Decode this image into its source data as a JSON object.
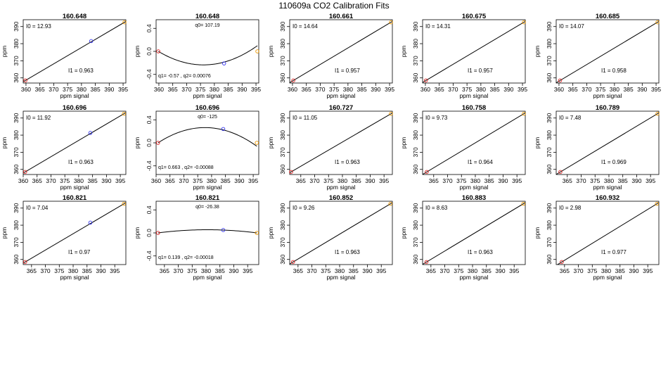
{
  "figure": {
    "title": "110609a   CO2 Calibration Fits",
    "colors": {
      "low_point": "#dd2222",
      "mid_point": "#3333ee",
      "high_point": "#ee9900",
      "line": "#000000"
    }
  },
  "chart_data": [
    {
      "type": "scatter",
      "kind": "linear",
      "title": "160.648",
      "xlabel": "ppm signal",
      "ylabel": "ppm",
      "xlim": [
        359,
        396
      ],
      "ylim": [
        357,
        394
      ],
      "xticks": [
        360,
        365,
        370,
        375,
        380,
        385,
        390,
        395
      ],
      "yticks": [
        360,
        370,
        380,
        390
      ],
      "points": [
        [
          359.8,
          358.5
        ],
        [
          383.5,
          381.5
        ],
        [
          395.5,
          392.5
        ]
      ],
      "anno": {
        "top": "I0 =  12.93",
        "bottom": "I1 =  0.963"
      }
    },
    {
      "type": "scatter",
      "kind": "quadratic",
      "title": "160.648",
      "xlabel": "",
      "ylabel": "ppm",
      "xlim": [
        359,
        396
      ],
      "ylim": [
        -0.55,
        0.55
      ],
      "xticks": [
        360,
        365,
        370,
        375,
        380,
        385,
        390,
        395
      ],
      "yticks": [
        -0.4,
        0,
        0.4
      ],
      "ytickLabels": [
        "-0.4",
        "0.0",
        "0.4"
      ],
      "points": [
        [
          359.8,
          0.0
        ],
        [
          383.5,
          -0.21
        ],
        [
          395.5,
          0.0
        ]
      ],
      "vertex": [
        376.1,
        -0.235
      ],
      "anno": {
        "top": "q0= 107.19",
        "bottom": "q1= -0.57  ,  q2= 0.00076"
      }
    },
    {
      "type": "scatter",
      "kind": "linear",
      "title": "160.661",
      "xlabel": "",
      "ylabel": "ppm",
      "xlim": [
        359,
        396
      ],
      "ylim": [
        357,
        394
      ],
      "xticks": [
        360,
        365,
        370,
        375,
        380,
        385,
        390,
        395
      ],
      "yticks": [
        360,
        370,
        380,
        390
      ],
      "points": [
        [
          360.3,
          358.5
        ],
        [
          395.5,
          392.5
        ]
      ],
      "anno": {
        "top": "I0 =  14.64",
        "bottom": "I1 =  0.957"
      }
    },
    {
      "type": "scatter",
      "kind": "linear",
      "title": "160.675",
      "xlabel": "",
      "ylabel": "ppm",
      "xlim": [
        359,
        396
      ],
      "ylim": [
        357,
        394
      ],
      "xticks": [
        360,
        365,
        370,
        375,
        380,
        385,
        390,
        395
      ],
      "yticks": [
        360,
        370,
        380,
        390
      ],
      "points": [
        [
          360.2,
          358.5
        ],
        [
          395.5,
          392.5
        ]
      ],
      "anno": {
        "top": "I0 =  14.31",
        "bottom": "I1 =  0.957"
      }
    },
    {
      "type": "scatter",
      "kind": "linear",
      "title": "160.685",
      "xlabel": "",
      "ylabel": "ppm",
      "xlim": [
        359,
        396
      ],
      "ylim": [
        357,
        394
      ],
      "xticks": [
        360,
        365,
        370,
        375,
        380,
        385,
        390,
        395
      ],
      "yticks": [
        360,
        370,
        380,
        390
      ],
      "points": [
        [
          360.4,
          358.5
        ],
        [
          395.5,
          392.5
        ]
      ],
      "anno": {
        "top": "I0 =  14.07",
        "bottom": "I1 =  0.958"
      }
    },
    {
      "type": "scatter",
      "kind": "linear",
      "title": "160.696",
      "xlabel": "ppm signal",
      "ylabel": "ppm",
      "xlim": [
        360,
        397
      ],
      "ylim": [
        357,
        394
      ],
      "xticks": [
        360,
        365,
        370,
        375,
        380,
        385,
        390,
        395
      ],
      "yticks": [
        360,
        370,
        380,
        390
      ],
      "points": [
        [
          360.7,
          358.5
        ],
        [
          384.2,
          381.3
        ],
        [
          396.3,
          392.5
        ]
      ],
      "anno": {
        "top": "I0 =  11.92",
        "bottom": "I1 =  0.963"
      }
    },
    {
      "type": "scatter",
      "kind": "quadratic",
      "title": "160.696",
      "xlabel": "",
      "ylabel": "ppm",
      "xlim": [
        360,
        397
      ],
      "ylim": [
        -0.55,
        0.55
      ],
      "xticks": [
        360,
        365,
        370,
        375,
        380,
        385,
        390,
        395
      ],
      "yticks": [
        -0.4,
        0,
        0.4
      ],
      "ytickLabels": [
        "-0.4",
        "0.0",
        "0.4"
      ],
      "points": [
        [
          360.7,
          0.0
        ],
        [
          384.2,
          0.24
        ],
        [
          396.3,
          0.0
        ]
      ],
      "vertex": [
        377.6,
        0.265
      ],
      "anno": {
        "top": "q0= -125",
        "bottom": "q1= 0.663  ,  q2= -0.00088"
      }
    },
    {
      "type": "scatter",
      "kind": "linear",
      "title": "160.727",
      "xlabel": "",
      "ylabel": "ppm",
      "xlim": [
        361,
        398
      ],
      "ylim": [
        357,
        394
      ],
      "xticks": [
        365,
        370,
        375,
        380,
        385,
        390,
        395
      ],
      "yticks": [
        360,
        370,
        380,
        390
      ],
      "points": [
        [
          361.5,
          358.5
        ],
        [
          397.5,
          392.5
        ]
      ],
      "anno": {
        "top": "I0 =  11.05",
        "bottom": "I1 =  0.963"
      }
    },
    {
      "type": "scatter",
      "kind": "linear",
      "title": "160.758",
      "xlabel": "",
      "ylabel": "ppm",
      "xlim": [
        361,
        398
      ],
      "ylim": [
        357,
        394
      ],
      "xticks": [
        365,
        370,
        375,
        380,
        385,
        390,
        395
      ],
      "yticks": [
        360,
        370,
        380,
        390
      ],
      "points": [
        [
          362.5,
          358.5
        ],
        [
          397.5,
          392.5
        ]
      ],
      "anno": {
        "top": "I0 =  9.73",
        "bottom": "I1 =  0.964"
      }
    },
    {
      "type": "scatter",
      "kind": "linear",
      "title": "160.789",
      "xlabel": "",
      "ylabel": "ppm",
      "xlim": [
        361,
        398
      ],
      "ylim": [
        357,
        394
      ],
      "xticks": [
        365,
        370,
        375,
        380,
        385,
        390,
        395
      ],
      "yticks": [
        360,
        370,
        380,
        390
      ],
      "points": [
        [
          362.5,
          358.5
        ],
        [
          397.5,
          392.5
        ]
      ],
      "anno": {
        "top": "I0 =  7.48",
        "bottom": "I1 =  0.969"
      }
    },
    {
      "type": "scatter",
      "kind": "linear",
      "title": "160.821",
      "xlabel": "ppm signal",
      "ylabel": "ppm",
      "xlim": [
        362,
        399
      ],
      "ylim": [
        357,
        394
      ],
      "xticks": [
        365,
        370,
        375,
        380,
        385,
        390,
        395
      ],
      "yticks": [
        360,
        370,
        380,
        390
      ],
      "points": [
        [
          362.7,
          358.5
        ],
        [
          386.2,
          381.5
        ],
        [
          398.3,
          392.5
        ]
      ],
      "anno": {
        "top": "I0 =  7.04",
        "bottom": "I1 =  0.97"
      }
    },
    {
      "type": "scatter",
      "kind": "quadratic",
      "title": "160.821",
      "xlabel": "ppm signal",
      "ylabel": "ppm",
      "xlim": [
        362,
        399
      ],
      "ylim": [
        -0.55,
        0.55
      ],
      "xticks": [
        365,
        370,
        375,
        380,
        385,
        390,
        395
      ],
      "yticks": [
        -0.4,
        0,
        0.4
      ],
      "ytickLabels": [
        "-0.4",
        "0.0",
        "0.4"
      ],
      "points": [
        [
          362.7,
          0.0
        ],
        [
          386.2,
          0.05
        ],
        [
          398.3,
          0.0
        ]
      ],
      "vertex": [
        380.5,
        0.055
      ],
      "anno": {
        "top": "q0= -26.38",
        "bottom": "q1= 0.139  ,  q2= -0.00018"
      }
    },
    {
      "type": "scatter",
      "kind": "linear",
      "title": "160.852",
      "xlabel": "ppm signal",
      "ylabel": "ppm",
      "xlim": [
        362,
        399
      ],
      "ylim": [
        357,
        394
      ],
      "xticks": [
        365,
        370,
        375,
        380,
        385,
        390,
        395
      ],
      "yticks": [
        360,
        370,
        380,
        390
      ],
      "points": [
        [
          363.2,
          358.5
        ],
        [
          398.3,
          392.5
        ]
      ],
      "anno": {
        "top": "I0 =  9.26",
        "bottom": "I1 =  0.963"
      }
    },
    {
      "type": "scatter",
      "kind": "linear",
      "title": "160.883",
      "xlabel": "ppm signal",
      "ylabel": "ppm",
      "xlim": [
        362,
        399
      ],
      "ylim": [
        357,
        394
      ],
      "xticks": [
        365,
        370,
        375,
        380,
        385,
        390,
        395
      ],
      "yticks": [
        360,
        370,
        380,
        390
      ],
      "points": [
        [
          363.4,
          358.5
        ],
        [
          398.3,
          392.5
        ]
      ],
      "anno": {
        "top": "I0 =  8.63",
        "bottom": "I1 =  0.963"
      }
    },
    {
      "type": "scatter",
      "kind": "linear",
      "title": "160.932",
      "xlabel": "ppm signal",
      "ylabel": "ppm",
      "xlim": [
        362,
        399
      ],
      "ylim": [
        357,
        394
      ],
      "xticks": [
        365,
        370,
        375,
        380,
        385,
        390,
        395
      ],
      "yticks": [
        360,
        370,
        380,
        390
      ],
      "points": [
        [
          364.0,
          358.5
        ],
        [
          398.3,
          392.5
        ]
      ],
      "anno": {
        "top": "I0 =  2.98",
        "bottom": "I1 =  0.977"
      }
    }
  ]
}
